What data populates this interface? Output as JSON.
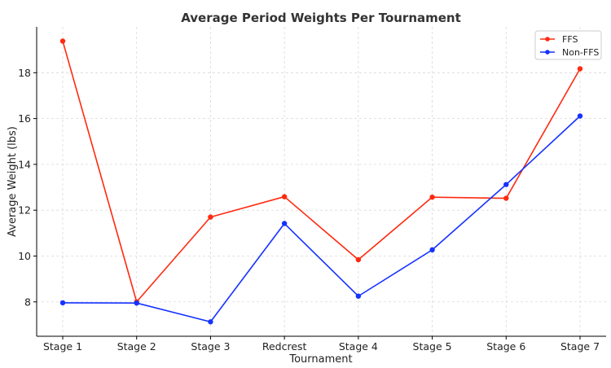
{
  "chart_data": {
    "type": "line",
    "title": "Average Period Weights Per Tournament",
    "xlabel": "Tournament",
    "ylabel": "Average Weight (lbs)",
    "categories": [
      "Stage 1",
      "Stage 2",
      "Stage 3",
      "Redcrest",
      "Stage 4",
      "Stage 5",
      "Stage 6",
      "Stage 7"
    ],
    "ylim": [
      6.5,
      20.0
    ],
    "yticks": [
      8,
      10,
      12,
      14,
      16,
      18
    ],
    "grid": true,
    "legend_position": "top-right",
    "series": [
      {
        "name": "FFS",
        "color": "#ff2a10",
        "values": [
          19.38,
          8.0,
          11.7,
          12.59,
          9.84,
          12.57,
          12.52,
          18.17
        ]
      },
      {
        "name": "Non-FFS",
        "color": "#1532ff",
        "values": [
          7.96,
          7.95,
          7.13,
          11.42,
          8.25,
          10.27,
          13.12,
          16.11
        ]
      }
    ]
  }
}
